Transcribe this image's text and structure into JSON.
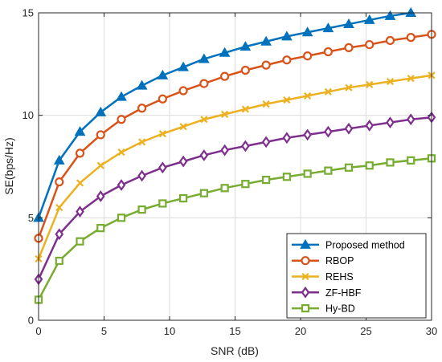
{
  "chart_data": {
    "type": "line",
    "xlabel": "SNR (dB)",
    "ylabel": "SE(bps/Hz)",
    "xlim": [
      0,
      30
    ],
    "ylim": [
      0,
      15
    ],
    "xticks": [
      0,
      5,
      10,
      15,
      20,
      25,
      30
    ],
    "yticks": [
      0,
      5,
      10,
      15
    ],
    "grid": true,
    "legend_position": "bottom-right",
    "x": [
      0,
      1.58,
      3.16,
      4.74,
      6.32,
      7.89,
      9.47,
      11.05,
      12.63,
      14.21,
      15.79,
      17.37,
      18.95,
      20.53,
      22.11,
      23.68,
      25.26,
      26.84,
      28.42,
      30
    ],
    "series": [
      {
        "name": "Proposed method",
        "color": "#0072BD",
        "marker": "triangle",
        "values": [
          5.0,
          7.8,
          9.2,
          10.15,
          10.9,
          11.45,
          11.95,
          12.35,
          12.75,
          13.05,
          13.35,
          13.6,
          13.85,
          14.05,
          14.25,
          14.45,
          14.65,
          14.85,
          15.0,
          null
        ]
      },
      {
        "name": "RBOP",
        "color": "#D95319",
        "marker": "circle",
        "values": [
          4.0,
          6.75,
          8.15,
          9.05,
          9.8,
          10.35,
          10.8,
          11.2,
          11.55,
          11.9,
          12.2,
          12.45,
          12.7,
          12.9,
          13.1,
          13.3,
          13.45,
          13.65,
          13.8,
          13.95
        ]
      },
      {
        "name": "REHS",
        "color": "#EDB120",
        "marker": "x",
        "values": [
          3.0,
          5.5,
          6.7,
          7.55,
          8.2,
          8.7,
          9.1,
          9.45,
          9.8,
          10.05,
          10.3,
          10.55,
          10.75,
          10.95,
          11.15,
          11.35,
          11.5,
          11.65,
          11.8,
          11.95
        ]
      },
      {
        "name": "ZF-HBF",
        "color": "#7E2F8E",
        "marker": "diamond",
        "values": [
          2.0,
          4.2,
          5.3,
          6.05,
          6.6,
          7.05,
          7.45,
          7.75,
          8.05,
          8.3,
          8.5,
          8.7,
          8.9,
          9.05,
          9.2,
          9.35,
          9.5,
          9.65,
          9.8,
          9.9
        ]
      },
      {
        "name": "Hy-BD",
        "color": "#77AC30",
        "marker": "square",
        "values": [
          1.0,
          2.9,
          3.85,
          4.5,
          5.0,
          5.4,
          5.7,
          5.95,
          6.2,
          6.45,
          6.65,
          6.85,
          7.0,
          7.15,
          7.3,
          7.45,
          7.55,
          7.7,
          7.8,
          7.9
        ]
      }
    ]
  }
}
